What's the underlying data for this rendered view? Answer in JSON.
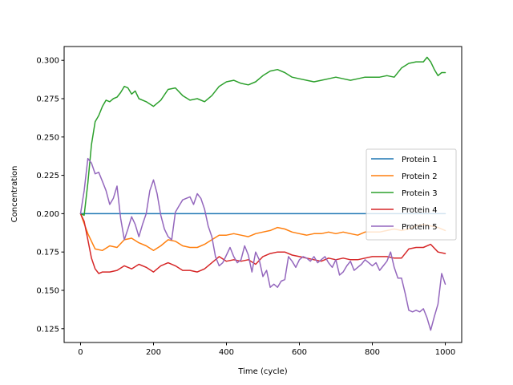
{
  "chart_data": {
    "type": "line",
    "xlabel": "Time (cycle)",
    "ylabel": "Concentration",
    "xlim": [
      -45,
      1045
    ],
    "ylim": [
      0.116,
      0.309
    ],
    "xticks": [
      0,
      200,
      400,
      600,
      800,
      1000
    ],
    "yticks": [
      0.125,
      0.15,
      0.175,
      0.2,
      0.225,
      0.25,
      0.275,
      0.3
    ],
    "ytick_labels": [
      "0.125",
      "0.150",
      "0.175",
      "0.200",
      "0.225",
      "0.250",
      "0.275",
      "0.300"
    ],
    "grid": false,
    "legend_position": "center-right",
    "series": [
      {
        "name": "Protein 1",
        "color": "#1f77b4",
        "x": [
          0,
          1000
        ],
        "y": [
          0.2,
          0.2
        ]
      },
      {
        "name": "Protein 2",
        "color": "#ff7f0e",
        "x": [
          0,
          20,
          40,
          60,
          80,
          100,
          120,
          140,
          160,
          180,
          200,
          220,
          240,
          260,
          280,
          300,
          320,
          340,
          360,
          380,
          400,
          420,
          440,
          460,
          480,
          500,
          520,
          540,
          560,
          580,
          600,
          620,
          640,
          660,
          680,
          700,
          720,
          740,
          760,
          780,
          800,
          820,
          840,
          860,
          880,
          900,
          920,
          940,
          960,
          980,
          1000
        ],
        "y": [
          0.2,
          0.187,
          0.177,
          0.176,
          0.179,
          0.178,
          0.183,
          0.184,
          0.181,
          0.179,
          0.176,
          0.179,
          0.183,
          0.182,
          0.179,
          0.178,
          0.178,
          0.18,
          0.183,
          0.186,
          0.186,
          0.187,
          0.186,
          0.185,
          0.187,
          0.188,
          0.189,
          0.191,
          0.19,
          0.188,
          0.187,
          0.186,
          0.187,
          0.187,
          0.188,
          0.187,
          0.188,
          0.187,
          0.186,
          0.188,
          0.188,
          0.188,
          0.189,
          0.19,
          0.189,
          0.19,
          0.192,
          0.193,
          0.192,
          0.191,
          0.189
        ]
      },
      {
        "name": "Protein 3",
        "color": "#2ca02c",
        "x": [
          0,
          10,
          20,
          30,
          40,
          50,
          60,
          70,
          80,
          90,
          100,
          110,
          120,
          130,
          140,
          150,
          160,
          180,
          200,
          220,
          240,
          260,
          280,
          300,
          320,
          340,
          360,
          380,
          400,
          420,
          440,
          460,
          480,
          500,
          520,
          540,
          560,
          580,
          600,
          620,
          640,
          660,
          680,
          700,
          720,
          740,
          760,
          780,
          800,
          820,
          840,
          860,
          880,
          900,
          920,
          940,
          950,
          960,
          970,
          980,
          990,
          1000
        ],
        "y": [
          0.2,
          0.199,
          0.22,
          0.245,
          0.26,
          0.264,
          0.27,
          0.274,
          0.273,
          0.275,
          0.276,
          0.279,
          0.283,
          0.282,
          0.278,
          0.28,
          0.275,
          0.273,
          0.27,
          0.274,
          0.281,
          0.282,
          0.277,
          0.274,
          0.275,
          0.273,
          0.277,
          0.283,
          0.286,
          0.287,
          0.285,
          0.284,
          0.286,
          0.29,
          0.293,
          0.294,
          0.292,
          0.289,
          0.288,
          0.287,
          0.286,
          0.287,
          0.288,
          0.289,
          0.288,
          0.287,
          0.288,
          0.289,
          0.289,
          0.289,
          0.29,
          0.289,
          0.295,
          0.298,
          0.299,
          0.299,
          0.302,
          0.299,
          0.294,
          0.29,
          0.292,
          0.292
        ]
      },
      {
        "name": "Protein 4",
        "color": "#d62728",
        "x": [
          0,
          10,
          20,
          30,
          40,
          50,
          60,
          80,
          100,
          120,
          140,
          160,
          180,
          200,
          220,
          240,
          260,
          280,
          300,
          320,
          340,
          360,
          380,
          400,
          420,
          440,
          460,
          480,
          500,
          520,
          540,
          560,
          580,
          600,
          620,
          640,
          660,
          680,
          700,
          720,
          740,
          760,
          780,
          800,
          820,
          840,
          860,
          880,
          900,
          920,
          940,
          960,
          980,
          1000
        ],
        "y": [
          0.2,
          0.195,
          0.183,
          0.171,
          0.164,
          0.161,
          0.162,
          0.162,
          0.163,
          0.166,
          0.164,
          0.167,
          0.165,
          0.162,
          0.166,
          0.168,
          0.166,
          0.163,
          0.163,
          0.162,
          0.164,
          0.168,
          0.172,
          0.169,
          0.17,
          0.169,
          0.17,
          0.167,
          0.172,
          0.174,
          0.175,
          0.175,
          0.173,
          0.172,
          0.171,
          0.17,
          0.169,
          0.171,
          0.17,
          0.171,
          0.17,
          0.17,
          0.171,
          0.172,
          0.172,
          0.172,
          0.171,
          0.171,
          0.177,
          0.178,
          0.178,
          0.18,
          0.175,
          0.174
        ]
      },
      {
        "name": "Protein 5",
        "color": "#9467bd",
        "x": [
          0,
          10,
          20,
          30,
          40,
          50,
          60,
          70,
          80,
          90,
          100,
          110,
          120,
          130,
          140,
          150,
          160,
          170,
          180,
          190,
          200,
          210,
          220,
          230,
          240,
          250,
          260,
          270,
          280,
          290,
          300,
          310,
          320,
          330,
          340,
          350,
          360,
          370,
          380,
          390,
          400,
          410,
          420,
          430,
          440,
          450,
          460,
          470,
          480,
          490,
          500,
          510,
          520,
          530,
          540,
          550,
          560,
          570,
          580,
          590,
          600,
          610,
          620,
          630,
          640,
          650,
          660,
          670,
          680,
          690,
          700,
          710,
          720,
          730,
          740,
          750,
          760,
          770,
          780,
          790,
          800,
          810,
          820,
          830,
          840,
          850,
          860,
          870,
          880,
          890,
          900,
          910,
          920,
          930,
          940,
          950,
          960,
          970,
          980,
          990,
          1000
        ],
        "y": [
          0.2,
          0.215,
          0.236,
          0.233,
          0.226,
          0.227,
          0.221,
          0.215,
          0.206,
          0.21,
          0.218,
          0.197,
          0.183,
          0.19,
          0.198,
          0.193,
          0.185,
          0.193,
          0.2,
          0.215,
          0.222,
          0.213,
          0.199,
          0.19,
          0.185,
          0.183,
          0.201,
          0.205,
          0.209,
          0.21,
          0.211,
          0.206,
          0.213,
          0.21,
          0.203,
          0.192,
          0.185,
          0.172,
          0.166,
          0.168,
          0.173,
          0.178,
          0.172,
          0.168,
          0.17,
          0.179,
          0.173,
          0.162,
          0.175,
          0.17,
          0.159,
          0.163,
          0.152,
          0.154,
          0.152,
          0.156,
          0.157,
          0.172,
          0.169,
          0.165,
          0.17,
          0.172,
          0.171,
          0.169,
          0.172,
          0.168,
          0.17,
          0.172,
          0.168,
          0.165,
          0.17,
          0.16,
          0.162,
          0.166,
          0.169,
          0.163,
          0.165,
          0.167,
          0.17,
          0.168,
          0.166,
          0.168,
          0.163,
          0.166,
          0.169,
          0.175,
          0.165,
          0.158,
          0.158,
          0.148,
          0.137,
          0.136,
          0.137,
          0.136,
          0.138,
          0.132,
          0.124,
          0.133,
          0.141,
          0.161,
          0.154
        ]
      }
    ]
  }
}
